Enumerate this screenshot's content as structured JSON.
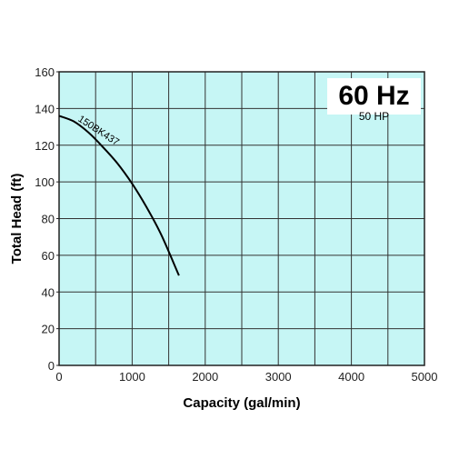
{
  "chart_data": {
    "type": "line",
    "xlabel": "Capacity (gal/min)",
    "ylabel": "Total Head (ft)",
    "xlim": [
      0,
      5000
    ],
    "ylim": [
      0,
      160
    ],
    "x_ticks": [
      "0",
      "1000",
      "2000",
      "3000",
      "4000",
      "5000"
    ],
    "y_ticks": [
      "0",
      "20",
      "40",
      "60",
      "80",
      "100",
      "120",
      "140",
      "160"
    ],
    "grid": true,
    "annotations": {
      "frequency": "60 Hz",
      "power": "50 HP"
    },
    "series": [
      {
        "name": "150BK437",
        "x": [
          0,
          200,
          400,
          600,
          800,
          1000,
          1200,
          1400,
          1640
        ],
        "y": [
          136,
          133,
          127,
          119,
          110,
          99,
          86,
          71,
          49
        ]
      }
    ],
    "colors": {
      "plot_background": "#c6f6f5",
      "grid": "#333333",
      "curve": "#000000"
    }
  }
}
